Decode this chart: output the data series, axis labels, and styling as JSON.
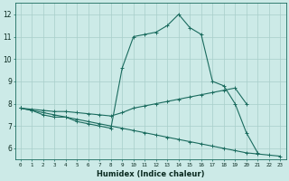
{
  "xlabel": "Humidex (Indice chaleur)",
  "bg_color": "#cceae7",
  "line_color": "#1a6b5e",
  "grid_color": "#a8ceca",
  "xlim": [
    -0.5,
    23.5
  ],
  "ylim": [
    5.5,
    12.5
  ],
  "yticks": [
    6,
    7,
    8,
    9,
    10,
    11,
    12
  ],
  "xticks": [
    0,
    1,
    2,
    3,
    4,
    5,
    6,
    7,
    8,
    9,
    10,
    11,
    12,
    13,
    14,
    15,
    16,
    17,
    18,
    19,
    20,
    21,
    22,
    23
  ],
  "series": [
    {
      "x": [
        0,
        1,
        2,
        3,
        4,
        5,
        6,
        7,
        8,
        9,
        10,
        11,
        12,
        13,
        14,
        15,
        16,
        17,
        18,
        19,
        20,
        21,
        22,
        23
      ],
      "y": [
        7.8,
        7.7,
        7.5,
        7.4,
        7.4,
        7.2,
        7.1,
        7.0,
        6.9,
        9.6,
        11.0,
        11.1,
        11.2,
        11.5,
        12.0,
        11.4,
        11.1,
        9.0,
        8.8,
        8.0,
        6.7,
        5.8,
        null,
        null
      ]
    },
    {
      "x": [
        0,
        1,
        2,
        3,
        4,
        5,
        6,
        7,
        8,
        9,
        10,
        11,
        12,
        13,
        14,
        15,
        16,
        17,
        18,
        19,
        20,
        21,
        22,
        23
      ],
      "y": [
        7.8,
        7.75,
        7.7,
        7.65,
        7.65,
        7.6,
        7.55,
        7.5,
        7.45,
        7.6,
        7.8,
        7.9,
        8.0,
        8.1,
        8.2,
        8.3,
        8.4,
        8.5,
        8.6,
        8.7,
        8.0,
        null,
        null,
        null
      ]
    },
    {
      "x": [
        0,
        1,
        2,
        3,
        4,
        5,
        6,
        7,
        8,
        9,
        10,
        11,
        12,
        13,
        14,
        15,
        16,
        17,
        18,
        19,
        20,
        21,
        22,
        23
      ],
      "y": [
        7.8,
        7.7,
        7.6,
        7.5,
        7.4,
        7.3,
        7.2,
        7.1,
        7.0,
        6.9,
        6.8,
        6.7,
        6.6,
        6.5,
        6.4,
        6.3,
        6.2,
        6.1,
        6.0,
        5.9,
        5.8,
        5.75,
        5.7,
        5.65
      ]
    }
  ]
}
